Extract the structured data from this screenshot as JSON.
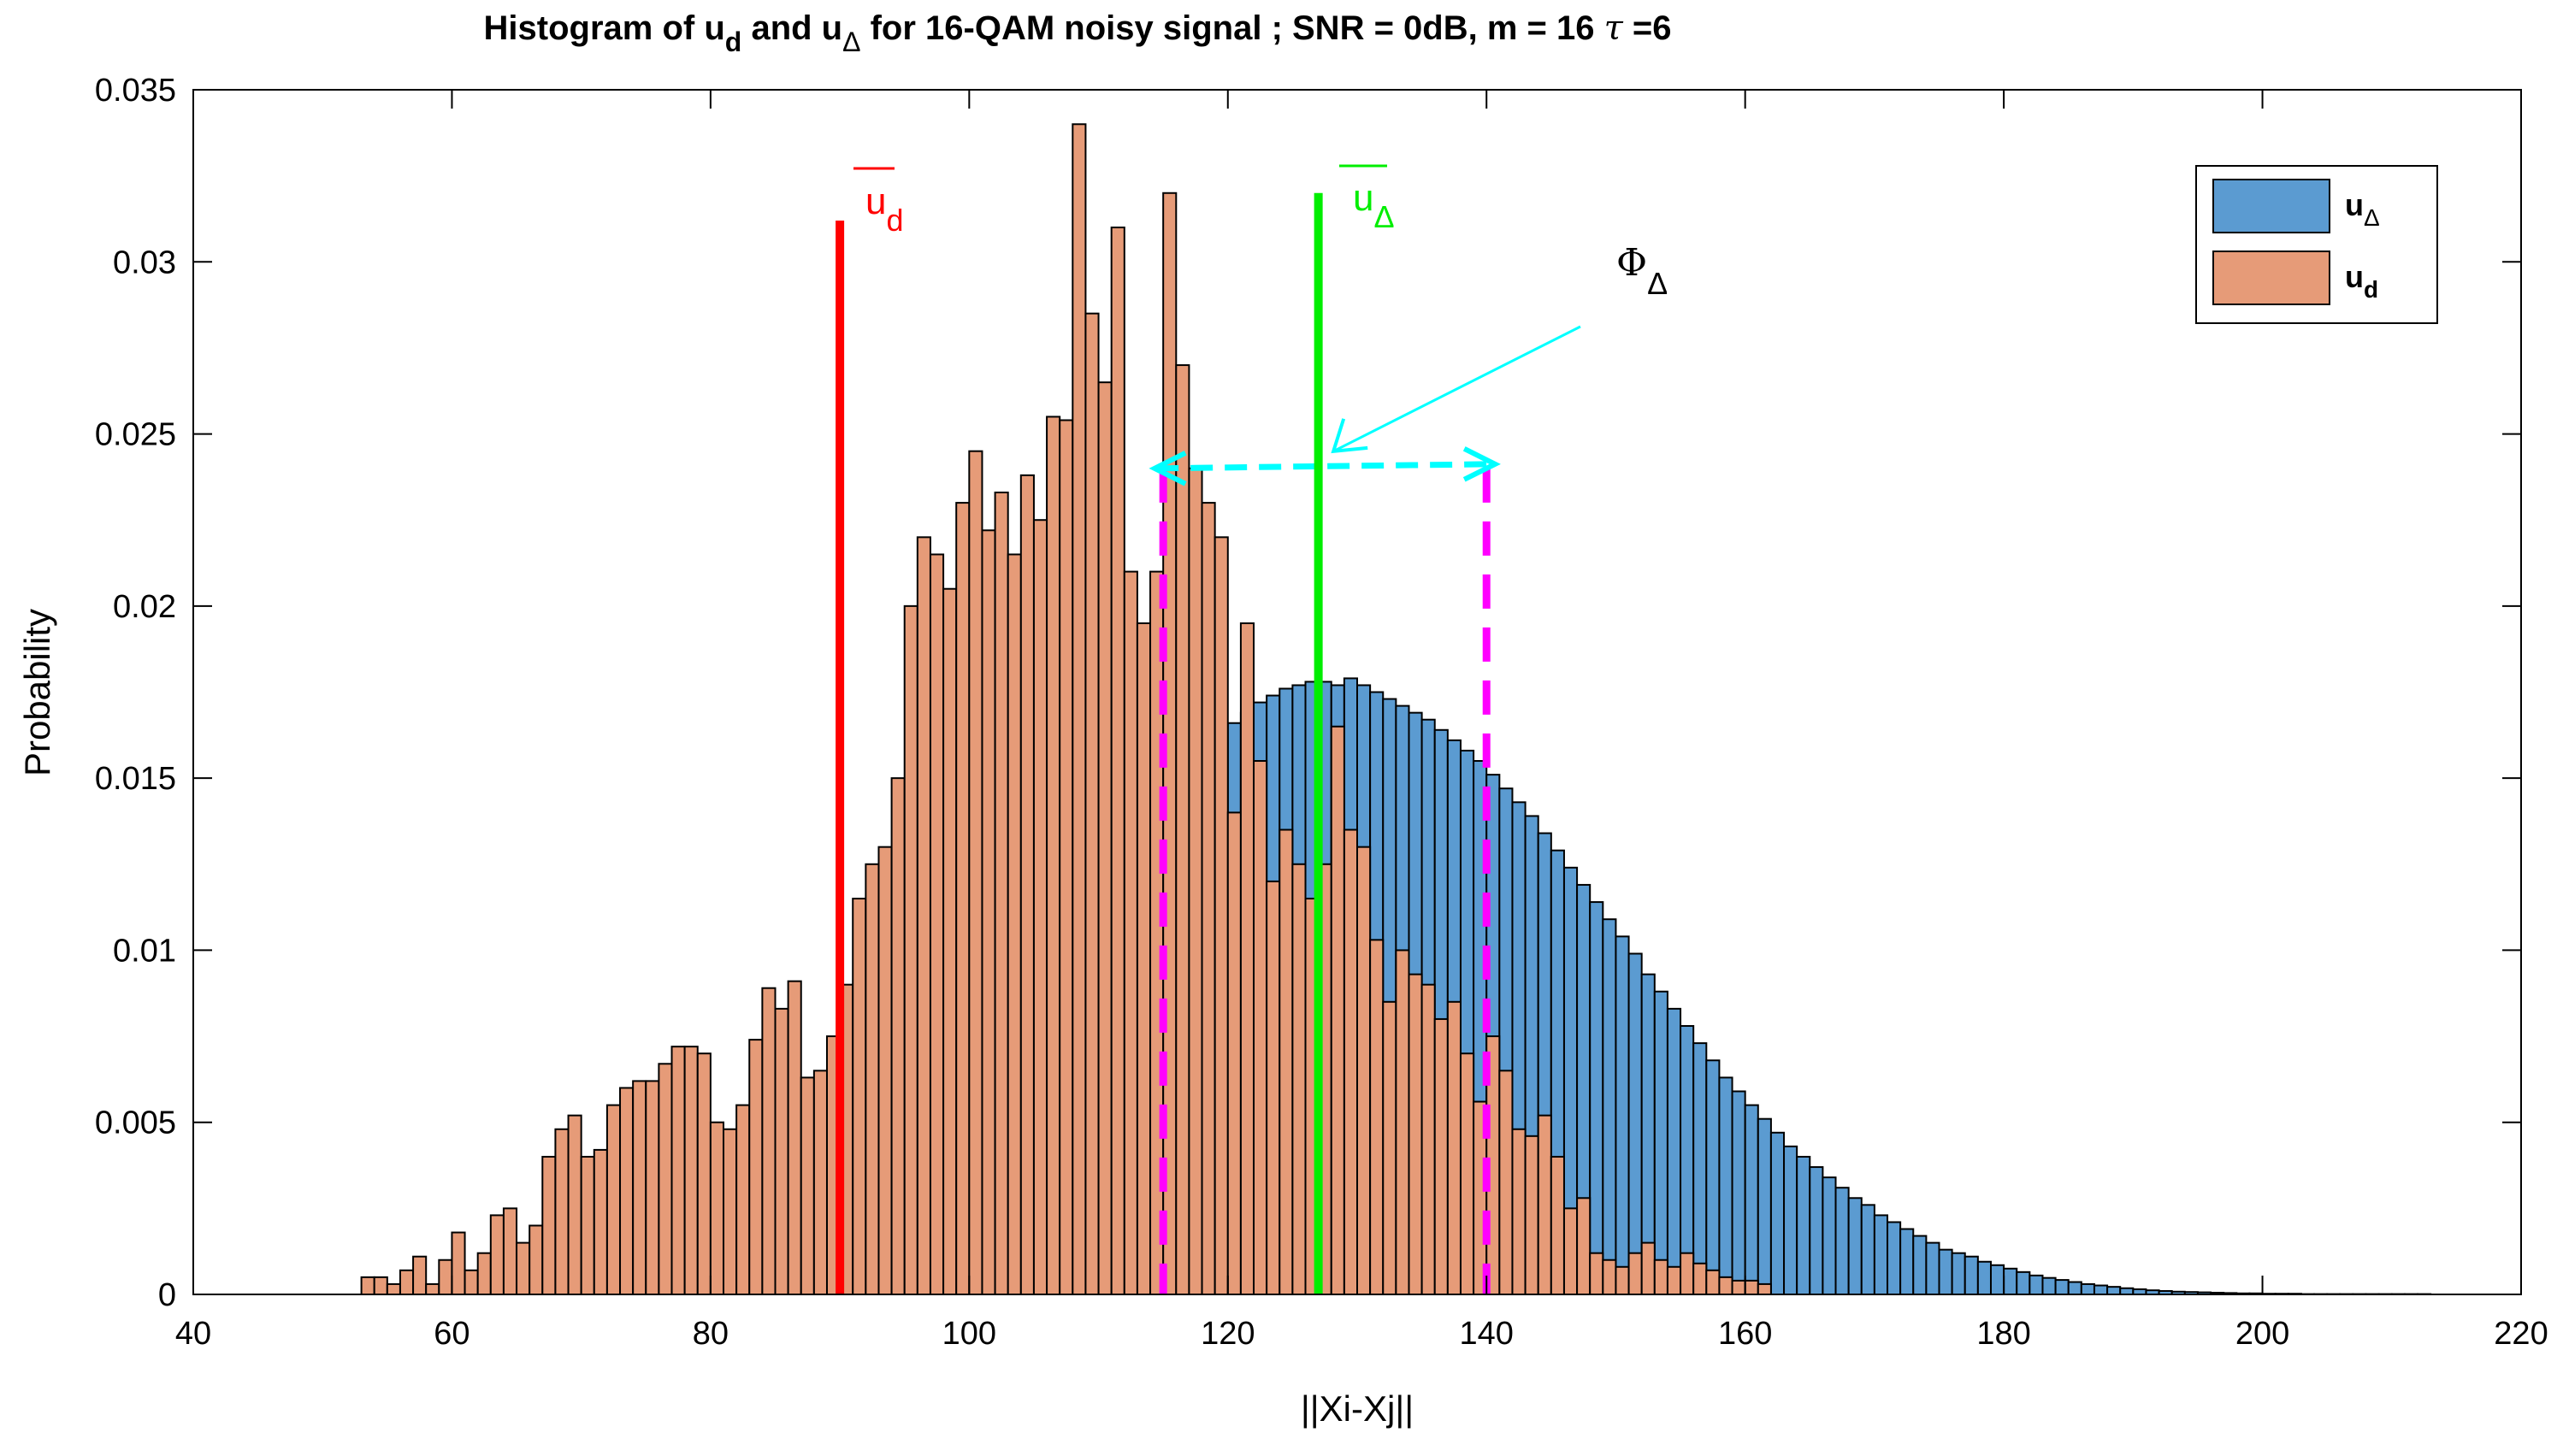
{
  "chart_data": {
    "type": "bar",
    "title": {
      "prefix": "Histogram of  u",
      "sub1": "d",
      "mid1": " and u",
      "sub2": "Δ",
      "suffix": "  for 16-QAM noisy signal ;  SNR = 0dB,  m = 16  ",
      "tau": "τ",
      "tau_val": " =6"
    },
    "xlabel": "||Xi-Xj||",
    "ylabel": "Probability",
    "xlim": [
      40,
      220
    ],
    "ylim": [
      0,
      0.035
    ],
    "xticks": [
      40,
      60,
      80,
      100,
      120,
      140,
      160,
      180,
      200,
      220
    ],
    "xtick_labels": [
      "40",
      "60",
      "80",
      "100",
      "120",
      "140",
      "160",
      "180",
      "200",
      "220"
    ],
    "yticks": [
      0,
      0.005,
      0.01,
      0.015,
      0.02,
      0.025,
      0.03,
      0.035
    ],
    "ytick_labels": [
      "0",
      "0.005",
      "0.01",
      "0.015",
      "0.02",
      "0.025",
      "0.03",
      "0.035"
    ],
    "bin_width": 1,
    "series": [
      {
        "name": "u_delta",
        "color": "#5b9bd1",
        "x_start": 109,
        "values": [
          0.0125,
          0.0128,
          0.0132,
          0.0135,
          0.0138,
          0.0142,
          0.0146,
          0.0151,
          0.0156,
          0.016,
          0.0163,
          0.0166,
          0.0169,
          0.0172,
          0.0174,
          0.0176,
          0.0177,
          0.0178,
          0.0178,
          0.0177,
          0.0179,
          0.0177,
          0.0175,
          0.0173,
          0.0171,
          0.0169,
          0.0167,
          0.0164,
          0.0161,
          0.0158,
          0.0155,
          0.0151,
          0.0147,
          0.0143,
          0.0139,
          0.0134,
          0.0129,
          0.0124,
          0.0119,
          0.0114,
          0.0109,
          0.0104,
          0.0099,
          0.0093,
          0.0088,
          0.0083,
          0.0078,
          0.0073,
          0.0068,
          0.0063,
          0.0059,
          0.0055,
          0.0051,
          0.0047,
          0.0043,
          0.004,
          0.0037,
          0.0034,
          0.0031,
          0.0028,
          0.0026,
          0.0023,
          0.0021,
          0.0019,
          0.0017,
          0.0015,
          0.0013,
          0.0012,
          0.0011,
          0.00095,
          0.00085,
          0.00075,
          0.00065,
          0.00055,
          0.00048,
          0.00042,
          0.00036,
          0.0003,
          0.00026,
          0.00022,
          0.00018,
          0.00015,
          0.00012,
          0.0001,
          8e-05,
          7e-05,
          6e-05,
          5e-05,
          4e-05,
          3e-05,
          3e-05,
          2e-05,
          2e-05,
          2e-05,
          1e-05,
          1e-05,
          1e-05,
          1e-05,
          1e-05,
          1e-05,
          1e-05,
          1e-05,
          1e-05,
          1e-05
        ]
      },
      {
        "name": "u_d",
        "color": "#e69b78",
        "x_start": 53,
        "values": [
          0.0005,
          0.0005,
          0.0003,
          0.0007,
          0.0011,
          0.0003,
          0.001,
          0.0018,
          0.0007,
          0.0012,
          0.0023,
          0.0025,
          0.0015,
          0.002,
          0.004,
          0.0048,
          0.0052,
          0.004,
          0.0042,
          0.0055,
          0.006,
          0.0062,
          0.0062,
          0.0067,
          0.0072,
          0.0072,
          0.007,
          0.005,
          0.0048,
          0.0055,
          0.0074,
          0.0089,
          0.0083,
          0.0091,
          0.0063,
          0.0065,
          0.0075,
          0.009,
          0.0115,
          0.0125,
          0.013,
          0.015,
          0.02,
          0.022,
          0.0215,
          0.0205,
          0.023,
          0.0245,
          0.0222,
          0.0233,
          0.0215,
          0.0238,
          0.0225,
          0.0255,
          0.0254,
          0.034,
          0.0285,
          0.0265,
          0.031,
          0.021,
          0.0195,
          0.021,
          0.032,
          0.027,
          0.024,
          0.023,
          0.022,
          0.014,
          0.0195,
          0.0155,
          0.012,
          0.0135,
          0.0125,
          0.0115,
          0.0125,
          0.0165,
          0.0135,
          0.013,
          0.0103,
          0.0085,
          0.01,
          0.0093,
          0.009,
          0.008,
          0.0085,
          0.007,
          0.0056,
          0.0075,
          0.0065,
          0.0048,
          0.0046,
          0.0052,
          0.004,
          0.0025,
          0.0028,
          0.0012,
          0.001,
          0.0008,
          0.0012,
          0.0015,
          0.001,
          0.0008,
          0.0012,
          0.0009,
          0.0007,
          0.0005,
          0.0004,
          0.0004,
          0.0003
        ]
      }
    ],
    "mean_lines": [
      {
        "name": "u_d mean",
        "x": 90,
        "y_top": 0.0312,
        "color": "#ff0000",
        "label": "u",
        "sub": "d"
      },
      {
        "name": "u_delta mean",
        "x": 127,
        "y_top": 0.032,
        "color": "#00ee00",
        "label": "u",
        "sub": "Δ"
      }
    ],
    "interval": {
      "x_low": 115,
      "x_high": 140,
      "y": 0.024,
      "color": "#ff00ff",
      "arrow_color": "#00ffff",
      "label": "Φ",
      "label_sub": "Δ"
    },
    "legend": {
      "placement": "top-right",
      "entries": [
        {
          "label": "u",
          "sub": "Δ",
          "color": "#5b9bd1"
        },
        {
          "label": "u",
          "sub": "d",
          "color": "#e69b78"
        }
      ]
    }
  }
}
